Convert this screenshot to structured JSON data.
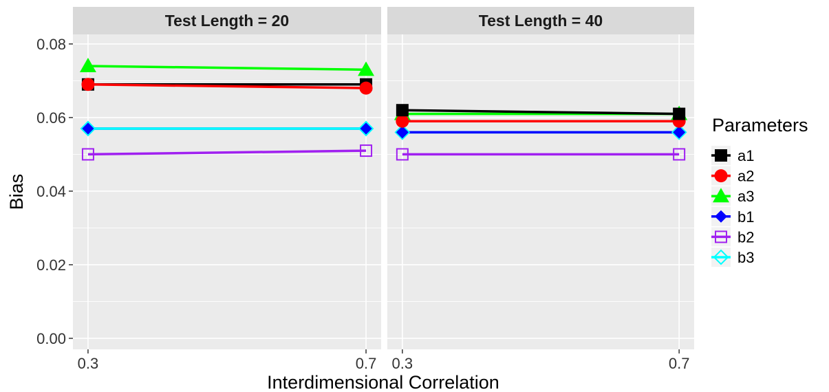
{
  "chart_data": {
    "type": "line",
    "xlabel": "Interdimensional Correlation",
    "ylabel": "Bias",
    "x_categories": [
      "0.3",
      "0.7"
    ],
    "ylim": [
      -0.003,
      0.0826
    ],
    "y_ticks": [
      0,
      0.02,
      0.04,
      0.06,
      0.08
    ],
    "y_tick_labels": [
      "0.00",
      "0.02",
      "0.04",
      "0.06",
      "0.08"
    ],
    "grid": true,
    "legend": {
      "title": "Parameters",
      "position": "right"
    },
    "panels": [
      {
        "strip_label": "Test Length = 20",
        "series": [
          {
            "name": "a1",
            "color": "#000000",
            "shape": "filled-square",
            "values": [
              0.069,
              0.069
            ]
          },
          {
            "name": "a2",
            "color": "#ff0000",
            "shape": "filled-circle",
            "values": [
              0.069,
              0.068
            ]
          },
          {
            "name": "a3",
            "color": "#00ff00",
            "shape": "filled-triangle",
            "values": [
              0.074,
              0.073
            ]
          },
          {
            "name": "b1",
            "color": "#0000ff",
            "shape": "filled-diamond",
            "values": [
              0.057,
              0.057
            ]
          },
          {
            "name": "b2",
            "color": "#a020f0",
            "shape": "open-square",
            "values": [
              0.05,
              0.051
            ]
          },
          {
            "name": "b3",
            "color": "#00ffff",
            "shape": "open-diamond",
            "values": [
              0.057,
              0.057
            ]
          }
        ]
      },
      {
        "strip_label": "Test Length = 40",
        "series": [
          {
            "name": "a1",
            "color": "#000000",
            "shape": "filled-square",
            "values": [
              0.062,
              0.061
            ]
          },
          {
            "name": "a2",
            "color": "#ff0000",
            "shape": "filled-circle",
            "values": [
              0.059,
              0.059
            ]
          },
          {
            "name": "a3",
            "color": "#00ff00",
            "shape": "filled-triangle",
            "values": [
              0.061,
              0.061
            ]
          },
          {
            "name": "b1",
            "color": "#0000ff",
            "shape": "filled-diamond",
            "values": [
              0.056,
              0.056
            ]
          },
          {
            "name": "b2",
            "color": "#a020f0",
            "shape": "open-square",
            "values": [
              0.05,
              0.05
            ]
          },
          {
            "name": "b3",
            "color": "#00ffff",
            "shape": "open-diamond",
            "values": [
              0.056,
              0.056
            ]
          }
        ]
      }
    ]
  }
}
